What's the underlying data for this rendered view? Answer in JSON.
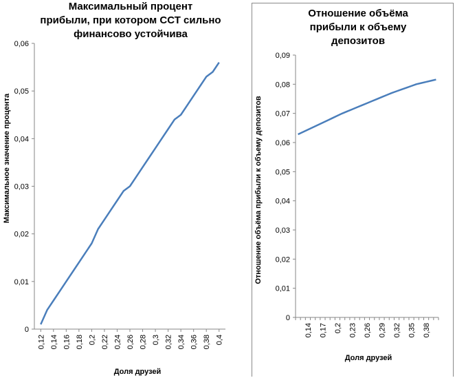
{
  "chart_data": [
    {
      "type": "line",
      "title": "Максимальный процент прибыли, при котором ССТ сильно финансово устойчива",
      "title_lines": [
        "Максимальный процент",
        "прибыли, при котором ССТ сильно",
        "финансово устойчива"
      ],
      "xlabel": "Доля друзей",
      "ylabel": "Максимальное значение процента",
      "x_ticks": [
        "0,12",
        "0,14",
        "0,16",
        "0,18",
        "0,2",
        "0,22",
        "0,24",
        "0,26",
        "0,28",
        "0,3",
        "0,32",
        "0,34",
        "0,36",
        "0,38",
        "0,4"
      ],
      "y_ticks": [
        "0",
        "0,01",
        "0,02",
        "0,03",
        "0,04",
        "0,05",
        "0,06"
      ],
      "ylim": [
        0,
        0.06
      ],
      "xlim": [
        0.11,
        0.41
      ],
      "grid": false,
      "line_color": "#4a7ebb",
      "x": [
        0.12,
        0.13,
        0.14,
        0.15,
        0.16,
        0.17,
        0.18,
        0.19,
        0.2,
        0.21,
        0.22,
        0.23,
        0.24,
        0.25,
        0.26,
        0.27,
        0.28,
        0.29,
        0.3,
        0.31,
        0.32,
        0.33,
        0.34,
        0.35,
        0.36,
        0.37,
        0.38,
        0.39,
        0.4
      ],
      "values": [
        0.001,
        0.004,
        0.006,
        0.008,
        0.01,
        0.012,
        0.014,
        0.016,
        0.018,
        0.021,
        0.023,
        0.025,
        0.027,
        0.029,
        0.03,
        0.032,
        0.034,
        0.036,
        0.038,
        0.04,
        0.042,
        0.044,
        0.045,
        0.047,
        0.049,
        0.051,
        0.053,
        0.054,
        0.056
      ]
    },
    {
      "type": "line",
      "title": "Отношение объёма прибыли к объему депозитов",
      "title_lines": [
        "Отношение объёма",
        "прибыли к объему",
        "депозитов"
      ],
      "xlabel": "Доля друзей",
      "ylabel": "Отношение объёма прибыли к объему депозитов",
      "x_ticks": [
        "0,14",
        "0,17",
        "0,2",
        "0,23",
        "0,26",
        "0,29",
        "0,32",
        "0,35",
        "0,38"
      ],
      "y_ticks": [
        "0",
        "0,01",
        "0,02",
        "0,03",
        "0,04",
        "0,05",
        "0,06",
        "0,07",
        "0,08",
        "0,09"
      ],
      "ylim": [
        0,
        0.09
      ],
      "grid": false,
      "line_color": "#4a7ebb",
      "x": [
        0.12,
        0.13,
        0.14,
        0.15,
        0.16,
        0.17,
        0.18,
        0.19,
        0.2,
        0.21,
        0.22,
        0.23,
        0.24,
        0.25,
        0.26,
        0.27,
        0.28,
        0.29,
        0.3,
        0.31,
        0.32,
        0.33,
        0.34,
        0.35,
        0.36,
        0.37,
        0.38,
        0.39,
        0.4
      ],
      "values": [
        0.0628,
        0.0636,
        0.0644,
        0.0652,
        0.066,
        0.0668,
        0.0676,
        0.0684,
        0.0692,
        0.07,
        0.0707,
        0.0714,
        0.0721,
        0.0728,
        0.0735,
        0.0742,
        0.0749,
        0.0756,
        0.0763,
        0.077,
        0.0776,
        0.0782,
        0.0788,
        0.0794,
        0.08,
        0.0804,
        0.0808,
        0.0812,
        0.0816
      ]
    }
  ]
}
